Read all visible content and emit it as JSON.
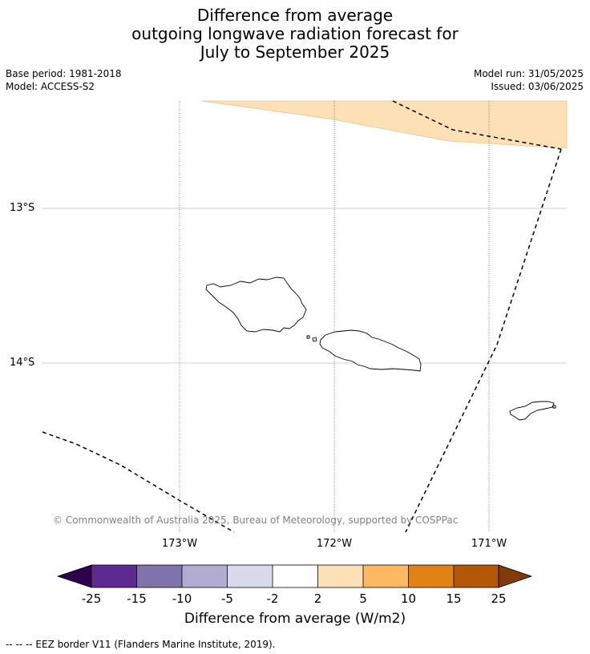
{
  "title": {
    "line1": "Difference from average",
    "line2": "outgoing longwave radiation forecast for",
    "line3": "July to September 2025"
  },
  "meta": {
    "base_period": "Base period: 1981-2018",
    "model": "Model: ACCESS-S2",
    "model_run": "Model run: 31/05/2025",
    "issued": "Issued: 03/06/2025"
  },
  "map": {
    "latitude_labels": [
      "13°S",
      "14°S"
    ],
    "longitude_labels": [
      "173°W",
      "172°W",
      "171°W"
    ],
    "credit": "© Commonwealth of Australia 2025, Bureau of Meteorology, supported by COSPPac",
    "forecast_anomaly_category": "2 to 5",
    "forecast_fill_color": "#fde0b6",
    "eez_style": "dashed"
  },
  "colorbar": {
    "title": "Difference from average (W/m2)",
    "ticks": [
      "-25",
      "-15",
      "-10",
      "-5",
      "-2",
      "2",
      "5",
      "10",
      "15",
      "25"
    ],
    "colors": [
      "#2d004b",
      "#5d2a8f",
      "#8073ac",
      "#b2abd2",
      "#d8daeb",
      "#ffffff",
      "#fee0b6",
      "#fdb863",
      "#e08214",
      "#b35806",
      "#7f3b08"
    ]
  },
  "footnote": "-- -- -- EEZ border V11 (Flanders Marine Institute, 2019)."
}
